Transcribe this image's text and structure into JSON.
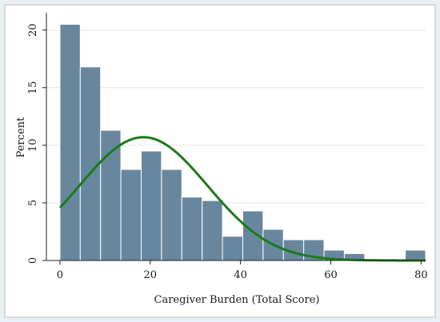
{
  "chart_data": {
    "type": "bar",
    "subtype": "histogram-with-normal-density",
    "xlabel": "Caregiver Burden (Total Score)",
    "ylabel": "Percent",
    "xlim": [
      -3,
      81
    ],
    "ylim": [
      0,
      21.5
    ],
    "x_ticks": [
      0,
      20,
      40,
      60,
      80
    ],
    "y_ticks": [
      0,
      5,
      10,
      15,
      20
    ],
    "grid": {
      "horizontal": true,
      "vertical": false
    },
    "bin_width": 4.5,
    "bins": [
      {
        "start": 0,
        "end": 4.5,
        "value": 20.5
      },
      {
        "start": 4.5,
        "end": 9,
        "value": 16.8
      },
      {
        "start": 9,
        "end": 13.5,
        "value": 11.3
      },
      {
        "start": 13.5,
        "end": 18,
        "value": 7.9
      },
      {
        "start": 18,
        "end": 22.5,
        "value": 9.5
      },
      {
        "start": 22.5,
        "end": 27,
        "value": 7.9
      },
      {
        "start": 27,
        "end": 31.5,
        "value": 5.5
      },
      {
        "start": 31.5,
        "end": 36,
        "value": 5.2
      },
      {
        "start": 36,
        "end": 40.5,
        "value": 2.1
      },
      {
        "start": 40.5,
        "end": 45,
        "value": 4.3
      },
      {
        "start": 45,
        "end": 49.5,
        "value": 2.7
      },
      {
        "start": 49.5,
        "end": 54,
        "value": 1.8
      },
      {
        "start": 54,
        "end": 58.5,
        "value": 1.8
      },
      {
        "start": 58.5,
        "end": 63,
        "value": 0.9
      },
      {
        "start": 63,
        "end": 67.5,
        "value": 0.6
      },
      {
        "start": 76.5,
        "end": 81,
        "value": 0.9
      }
    ],
    "normal_curve": {
      "mean": 18.5,
      "sd": 14.2,
      "peak": 10.7
    },
    "colors": {
      "bar_fill": "#68879f",
      "bar_stroke": "#ffffff",
      "curve": "#1a7a1a",
      "grid": "#e6e6e6",
      "axis": "#222222",
      "outer_background": "#e9eff3",
      "plot_background": "#ffffff"
    }
  }
}
